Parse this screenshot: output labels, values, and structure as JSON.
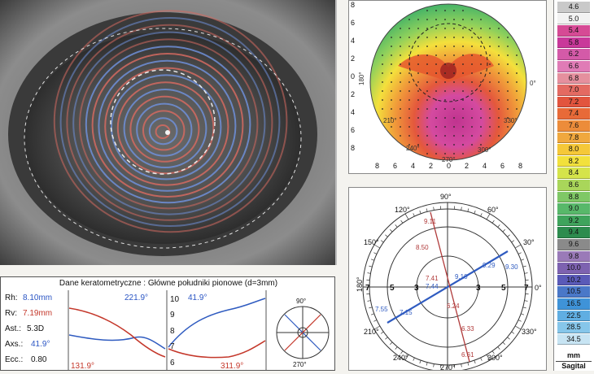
{
  "keratometry": {
    "title": "Dane keratometryczne : Główne południki pionowe (d=3mm)",
    "rh_label": "Rh:",
    "rh_value": "8.10mm",
    "rv_label": "Rv:",
    "rv_value": "7.19mm",
    "ast_label": "Ast.:",
    "ast_value": "5.3D",
    "axs_label": "Axs.:",
    "axs_value": "41.9°",
    "ecc_label": "Ecc.:",
    "ecc_value": "0.80",
    "curve_top_left": "221.9°",
    "curve_top_right": "41.9°",
    "curve_bottom_left": "131.9°",
    "curve_bottom_right": "311.9°",
    "axis_ticks": [
      "10",
      "9",
      "8",
      "7",
      "6"
    ],
    "mini_top": "90°",
    "mini_bottom": "270°"
  },
  "topography": {
    "y_ticks": [
      "8",
      "6",
      "4",
      "2",
      "0",
      "2",
      "4",
      "6",
      "8"
    ],
    "x_ticks": [
      "8",
      "6",
      "4",
      "2",
      "0",
      "2",
      "4",
      "6",
      "8"
    ],
    "angle_labels": [
      "0°",
      "180°",
      "210°",
      "240°",
      "270°",
      "300°",
      "330°"
    ]
  },
  "polar": {
    "top_labels": [
      "90°",
      "60°",
      "120°"
    ],
    "side_labels": [
      "180°",
      "0°",
      "150°",
      "30°",
      "210°",
      "330°",
      "240°",
      "300°",
      "270°"
    ],
    "ring_labels": [
      "7",
      "5",
      "3",
      "3",
      "5",
      "7"
    ],
    "red_values": [
      "9.11",
      "8.50",
      "7.41",
      "6.24",
      "6.33",
      "6.61"
    ],
    "blue_values": [
      "9.29",
      "9.30",
      "9.10",
      "7.44",
      "7.15",
      "7.55"
    ]
  },
  "scale": {
    "values": [
      "4.6",
      "5.0",
      "5.4",
      "5.8",
      "6.2",
      "6.6",
      "6.8",
      "7.0",
      "7.2",
      "7.4",
      "7.6",
      "7.8",
      "8.0",
      "8.2",
      "8.4",
      "8.6",
      "8.8",
      "9.0",
      "9.2",
      "9.4",
      "9.6",
      "9.8",
      "10.0",
      "10.2",
      "10.5",
      "16.5",
      "22.5",
      "28.5",
      "34.5"
    ],
    "colors": [
      "#c9c9c9",
      "#f2f2f2",
      "#d64a95",
      "#c9389a",
      "#d45aa8",
      "#e07bb6",
      "#e5909e",
      "#e46a62",
      "#e2543e",
      "#e86a38",
      "#ec8c3a",
      "#f0a83e",
      "#f5c838",
      "#f2e13c",
      "#d5e44a",
      "#a9d65a",
      "#7fc866",
      "#58b86a",
      "#3fa45c",
      "#2d8c4e",
      "#8a8a8a",
      "#9a7ab8",
      "#7d62b0",
      "#5a5ab8",
      "#4a78c8",
      "#3f93d8",
      "#60aee2",
      "#86c6ea",
      "#c7e4f3"
    ],
    "unit": "mm",
    "mode": "Sagital"
  }
}
